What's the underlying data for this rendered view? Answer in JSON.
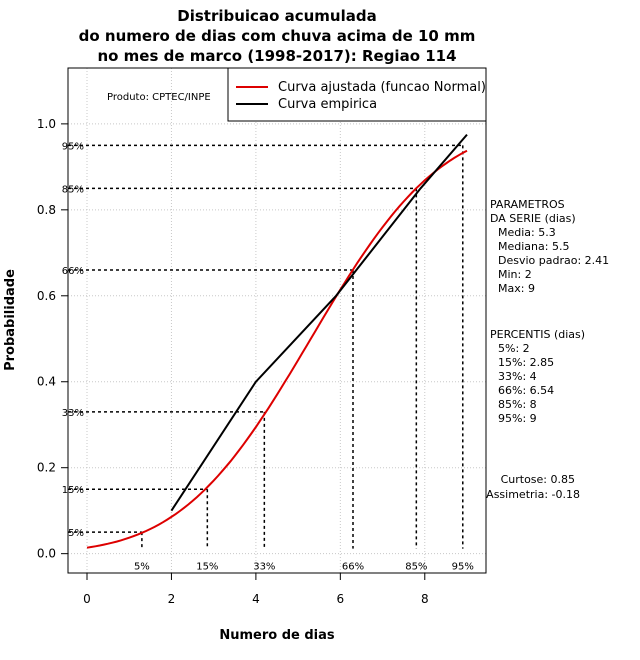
{
  "chart_data": {
    "type": "line",
    "title": [
      "Distribuicao acumulada",
      "do numero de dias com chuva acima de 10 mm",
      "no mes de marco (1998-2017): Regiao 114"
    ],
    "xlabel": "Numero de dias",
    "ylabel": "Probabilidade",
    "xlim": [
      -0.45,
      9.45
    ],
    "ylim": [
      -0.045,
      1.13
    ],
    "x_ticks": [
      0,
      2,
      4,
      6,
      8
    ],
    "y_ticks": [
      0.0,
      0.2,
      0.4,
      0.6,
      0.8,
      1.0
    ],
    "x_tick_labels": [
      "0",
      "2",
      "4",
      "6",
      "8"
    ],
    "y_tick_labels": [
      "0.0",
      "0.2",
      "0.4",
      "0.6",
      "0.8",
      "1.0"
    ],
    "grid": true,
    "product_label": "Produto: CPTEC/INPE",
    "legend": {
      "position": "top-right",
      "entries": [
        {
          "label": "Curva ajustada (funcao Normal)",
          "color": "#dd0000"
        },
        {
          "label": "Curva empirica",
          "color": "#000000"
        }
      ]
    },
    "series": [
      {
        "name": "Curva ajustada (funcao Normal)",
        "color": "#dd0000",
        "distribution": "normal",
        "mean": 5.3,
        "sd": 2.41,
        "x_range": [
          0,
          9
        ]
      },
      {
        "name": "Curva empirica",
        "color": "#000000",
        "x": [
          2,
          4,
          5.9,
          7.9,
          9
        ],
        "y": [
          0.1,
          0.4,
          0.6,
          0.85,
          0.975
        ]
      }
    ],
    "percentiles": [
      {
        "p": 0.05,
        "x": 1.3,
        "label_y": "5%",
        "label_x": "5%"
      },
      {
        "p": 0.15,
        "x": 2.85,
        "label_y": "15%",
        "label_x": "15%"
      },
      {
        "p": 0.33,
        "x": 4.2,
        "label_y": "33%",
        "label_x": "33%"
      },
      {
        "p": 0.66,
        "x": 6.3,
        "label_y": "66%",
        "label_x": "66%"
      },
      {
        "p": 0.85,
        "x": 7.8,
        "label_y": "85%",
        "label_x": "85%"
      },
      {
        "p": 0.95,
        "x": 8.9,
        "label_y": "95%",
        "label_x": "95%"
      }
    ],
    "side_panel": {
      "params_title": [
        "PARAMETROS",
        "DA SERIE (dias)"
      ],
      "params": [
        "Media: 5.3",
        "Mediana: 5.5",
        "Desvio padrao: 2.41",
        "Min: 2",
        "Max: 9"
      ],
      "percentis_title": "PERCENTIS (dias)",
      "percentis": [
        "5%: 2",
        "15%: 2.85",
        "33%: 4",
        "66%: 6.54",
        "85%: 8",
        "95%: 9"
      ],
      "stats": [
        "Curtose: 0.85",
        "Assimetria: -0.18"
      ]
    }
  }
}
